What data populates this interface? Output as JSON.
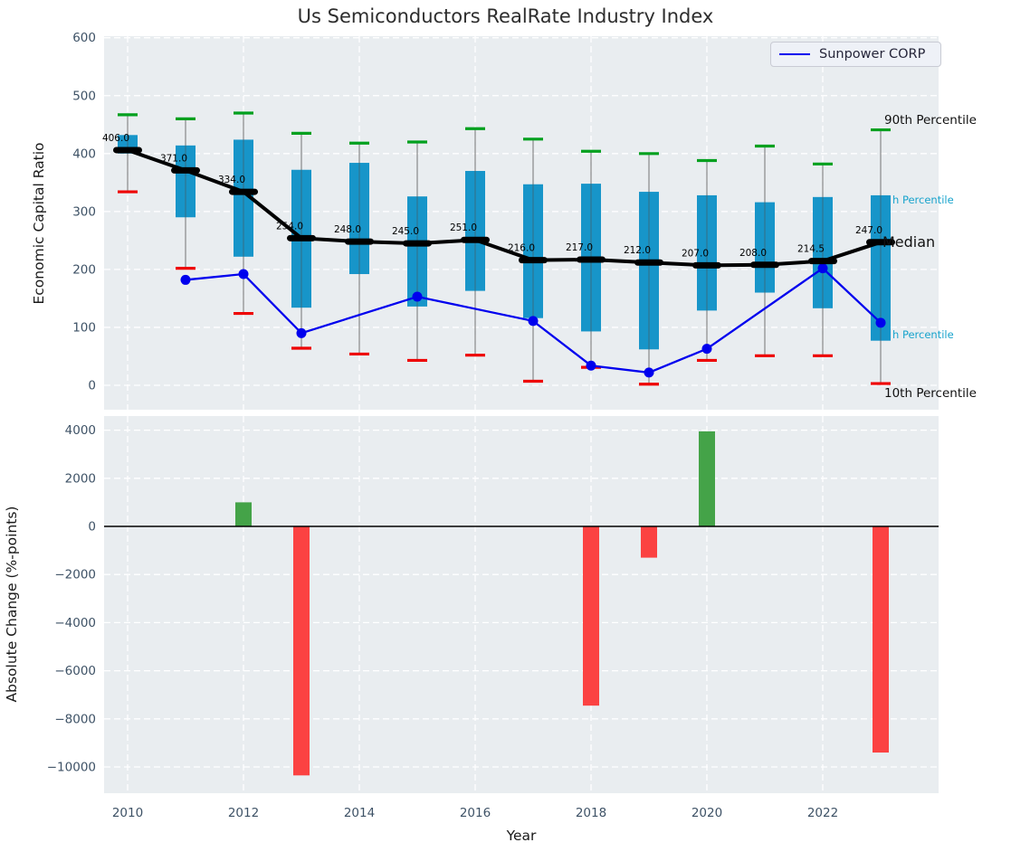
{
  "title": "Us Semiconductors RealRate Industry Index",
  "legend": {
    "label": "Sunpower CORP",
    "line_color": "#0000ee"
  },
  "axes": {
    "top": {
      "ylabel": "Economic Capital Ratio"
    },
    "bottom": {
      "ylabel": "Absolute Change (%-points)",
      "xlabel": "Year"
    }
  },
  "right_labels": [
    {
      "text": "90th Percentile",
      "color": "#111111"
    },
    {
      "text": "h Percentile",
      "color": "#18a3cc"
    },
    {
      "text": "Median",
      "color": "#111111"
    },
    {
      "text": "h Percentile",
      "color": "#18a3cc"
    },
    {
      "text": "10th Percentile",
      "color": "#111111"
    }
  ],
  "colors": {
    "panel_bg": "#e9edf0",
    "grid": "#ffffff",
    "box": "#1795c9",
    "whisker": "#888888",
    "cap_high": "#00a01e",
    "cap_low": "#ee0000",
    "median_line": "#000000",
    "series_line": "#0000ee",
    "bar_positive": "#44a348",
    "bar_negative": "#fb4242",
    "tick_label": "#3e5266"
  },
  "chart_data": [
    {
      "type": "box",
      "panel": "top",
      "ylabel": "Economic Capital Ratio",
      "ylim": [
        -42,
        603
      ],
      "yticks": [
        0,
        100,
        200,
        300,
        400,
        500,
        600
      ],
      "xticks": [
        2010,
        2012,
        2014,
        2016,
        2018,
        2020,
        2022
      ],
      "grid": true,
      "years": [
        2010,
        2011,
        2012,
        2013,
        2014,
        2015,
        2016,
        2017,
        2018,
        2019,
        2020,
        2021,
        2022,
        2023
      ],
      "p90": [
        467,
        460,
        470,
        435,
        418,
        420,
        443,
        425,
        404,
        400,
        388,
        413,
        382,
        441
      ],
      "p75": [
        432,
        414,
        424,
        372,
        384,
        326,
        370,
        347,
        348,
        334,
        328,
        316,
        325,
        328
      ],
      "median": [
        406,
        371,
        334,
        254,
        248,
        245,
        251,
        216,
        217,
        212,
        207,
        208,
        214.5,
        247
      ],
      "p25": [
        400,
        290,
        222,
        134,
        192,
        136,
        163,
        116,
        93,
        62,
        129,
        160,
        133,
        77
      ],
      "p10": [
        334,
        202,
        124,
        64,
        54,
        43,
        52,
        7,
        31,
        2,
        43,
        51,
        51,
        3
      ],
      "median_labels": [
        "406.0",
        "371.0",
        "334.0",
        "254.0",
        "248.0",
        "245.0",
        "251.0",
        "216.0",
        "217.0",
        "212.0",
        "207.0",
        "208.0",
        "214.5",
        "247.0"
      ],
      "series": [
        {
          "name": "Sunpower CORP",
          "color": "#0000ee",
          "x": [
            2011,
            2012,
            2013,
            2015,
            2017,
            2018,
            2019,
            2020,
            2022,
            2023
          ],
          "y": [
            182,
            192,
            90,
            153,
            111,
            34,
            22,
            63,
            202,
            108
          ]
        }
      ]
    },
    {
      "type": "bar",
      "panel": "bottom",
      "ylabel": "Absolute Change (%-points)",
      "xlabel": "Year",
      "ylim": [
        -11090,
        4590
      ],
      "yticks": [
        4000,
        2000,
        0,
        -2000,
        -4000,
        -6000,
        -8000,
        -10000
      ],
      "xticks": [
        2010,
        2012,
        2014,
        2016,
        2018,
        2020,
        2022
      ],
      "grid": true,
      "x": [
        2012,
        2013,
        2018,
        2019,
        2020,
        2023
      ],
      "values": [
        1000,
        -10350,
        -7450,
        -1300,
        3950,
        -9400
      ]
    }
  ]
}
